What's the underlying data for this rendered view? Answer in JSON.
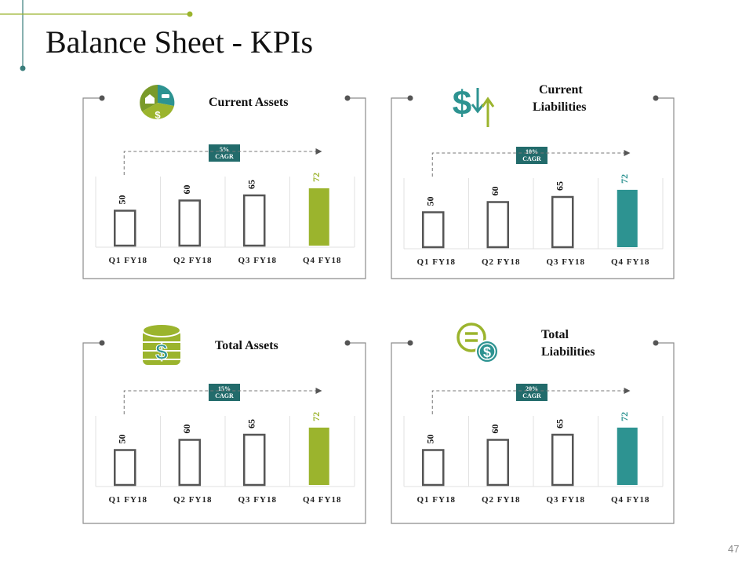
{
  "slide": {
    "title": "Balance Sheet - KPIs",
    "page_number": "47",
    "colors": {
      "green": "#9bb42d",
      "teal": "#2d9391",
      "cagr_bg": "#226b6b",
      "frame": "#8c8c8c",
      "bar_outline": "#555555"
    }
  },
  "panels": [
    {
      "title_lines": [
        "Current Assets"
      ],
      "cagr_value": "5%",
      "cagr_label": "CAGR",
      "accent": "#9bb42d",
      "icon": "pie-assets-icon"
    },
    {
      "title_lines": [
        "Current",
        "Liabilities"
      ],
      "cagr_value": "10%",
      "cagr_label": "CAGR",
      "accent": "#2d9391",
      "icon": "dollar-arrows-icon"
    },
    {
      "title_lines": [
        "Total Assets"
      ],
      "cagr_value": "15%",
      "cagr_label": "CAGR",
      "accent": "#9bb42d",
      "icon": "coin-stack-dollar-icon"
    },
    {
      "title_lines": [
        "Total",
        "Liabilities"
      ],
      "cagr_value": "20%",
      "cagr_label": "CAGR",
      "accent": "#2d9391",
      "icon": "equals-dollar-icon"
    }
  ],
  "chart_data": [
    {
      "type": "bar",
      "title": "Current Assets",
      "categories": [
        "Q1 FY18",
        "Q2 FY18",
        "Q3 FY18",
        "Q4 FY18"
      ],
      "values": [
        50,
        60,
        65,
        72
      ],
      "ylim": [
        0,
        100
      ],
      "highlight_index": 3,
      "annotation": "5% CAGR"
    },
    {
      "type": "bar",
      "title": "Current Liabilities",
      "categories": [
        "Q1 FY18",
        "Q2 FY18",
        "Q3 FY18",
        "Q4 FY18"
      ],
      "values": [
        50,
        60,
        65,
        72
      ],
      "ylim": [
        0,
        100
      ],
      "highlight_index": 3,
      "annotation": "10% CAGR"
    },
    {
      "type": "bar",
      "title": "Total Assets",
      "categories": [
        "Q1 FY18",
        "Q2 FY18",
        "Q3 FY18",
        "Q4 FY18"
      ],
      "values": [
        50,
        60,
        65,
        72
      ],
      "ylim": [
        0,
        100
      ],
      "highlight_index": 3,
      "annotation": "15% CAGR"
    },
    {
      "type": "bar",
      "title": "Total Liabilities",
      "categories": [
        "Q1 FY18",
        "Q2 FY18",
        "Q3 FY18",
        "Q4 FY18"
      ],
      "values": [
        50,
        60,
        65,
        72
      ],
      "ylim": [
        0,
        100
      ],
      "highlight_index": 3,
      "annotation": "20% CAGR"
    }
  ]
}
